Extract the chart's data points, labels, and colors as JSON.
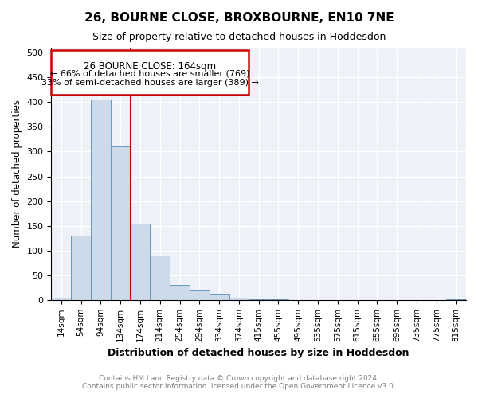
{
  "title": "26, BOURNE CLOSE, BROXBOURNE, EN10 7NE",
  "subtitle": "Size of property relative to detached houses in Hoddesdon",
  "xlabel": "Distribution of detached houses by size in Hoddesdon",
  "ylabel": "Number of detached properties",
  "bar_labels": [
    "14sqm",
    "54sqm",
    "94sqm",
    "134sqm",
    "174sqm",
    "214sqm",
    "254sqm",
    "294sqm",
    "334sqm",
    "374sqm",
    "415sqm",
    "455sqm",
    "495sqm",
    "535sqm",
    "575sqm",
    "615sqm",
    "655sqm",
    "695sqm",
    "735sqm",
    "775sqm",
    "815sqm"
  ],
  "bar_values": [
    5,
    130,
    405,
    310,
    155,
    90,
    30,
    20,
    12,
    5,
    2,
    1,
    0,
    0,
    0,
    0,
    0,
    0,
    0,
    0,
    1
  ],
  "bar_color": "#ccdaea",
  "bar_edge_color": "#6699bb",
  "ylim": [
    0,
    510
  ],
  "yticks": [
    0,
    50,
    100,
    150,
    200,
    250,
    300,
    350,
    400,
    450,
    500
  ],
  "red_line_x": 3.5,
  "annotation_line1": "26 BOURNE CLOSE: 164sqm",
  "annotation_line2": "← 66% of detached houses are smaller (769)",
  "annotation_line3": "33% of semi-detached houses are larger (389) →",
  "annotation_box_color": "#cc0000",
  "plot_bg_color": "#eef2f8",
  "footer1": "Contains HM Land Registry data © Crown copyright and database right 2024.",
  "footer2": "Contains public sector information licensed under the Open Government Licence v3.0."
}
